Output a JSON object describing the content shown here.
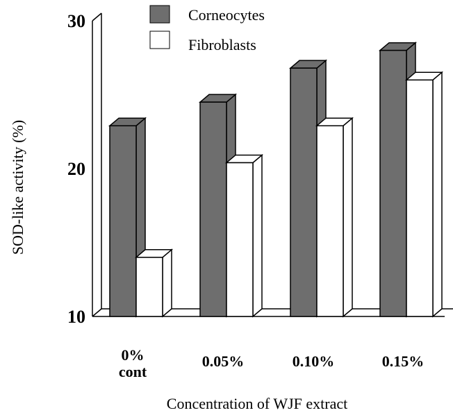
{
  "chart_data": {
    "type": "bar",
    "categories": [
      [
        "0%",
        "cont"
      ],
      [
        "0.05%"
      ],
      [
        "0.10%"
      ],
      [
        "0.15%"
      ]
    ],
    "series": [
      {
        "name": "Corneocytes",
        "values": [
          22.9,
          24.5,
          26.8,
          28.0
        ],
        "color": "#6e6e6e"
      },
      {
        "name": "Fibroblasts",
        "values": [
          14.0,
          20.4,
          22.9,
          26.0
        ],
        "color": "#ffffff"
      }
    ],
    "xlabel": "Concentration of WJF extract",
    "ylabel": "SOD-like activity (%)",
    "ylim": [
      10,
      30
    ],
    "yticks": [
      10,
      20,
      30
    ],
    "grid": false,
    "legend": "top-center",
    "style": "3d-bars"
  }
}
